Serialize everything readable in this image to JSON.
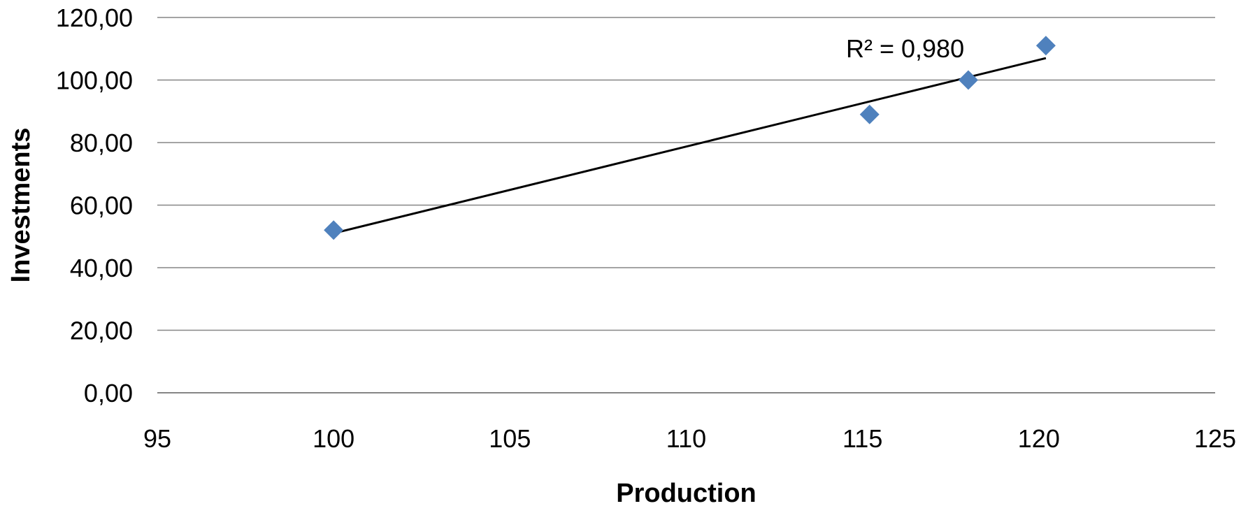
{
  "chart_data": {
    "type": "scatter",
    "title": "",
    "xlabel": "Production",
    "ylabel": "Investments",
    "xlim": [
      95,
      125
    ],
    "ylim": [
      0,
      120
    ],
    "x_ticks": [
      "95",
      "100",
      "105",
      "110",
      "115",
      "120",
      "125"
    ],
    "y_ticks": [
      "0,00",
      "20,00",
      "40,00",
      "60,00",
      "80,00",
      "100,00",
      "120,00"
    ],
    "grid": "horizontal",
    "legend": "none",
    "series": [
      {
        "x": [
          100,
          115.2,
          118,
          120.2
        ],
        "y": [
          52,
          89,
          100,
          111
        ],
        "color": "#4f81bd",
        "marker": "diamond"
      }
    ],
    "trendline": {
      "type": "linear",
      "x": [
        100,
        120.2
      ],
      "y": [
        51,
        107
      ],
      "color": "#000000",
      "label": "R² = 0,980"
    }
  }
}
